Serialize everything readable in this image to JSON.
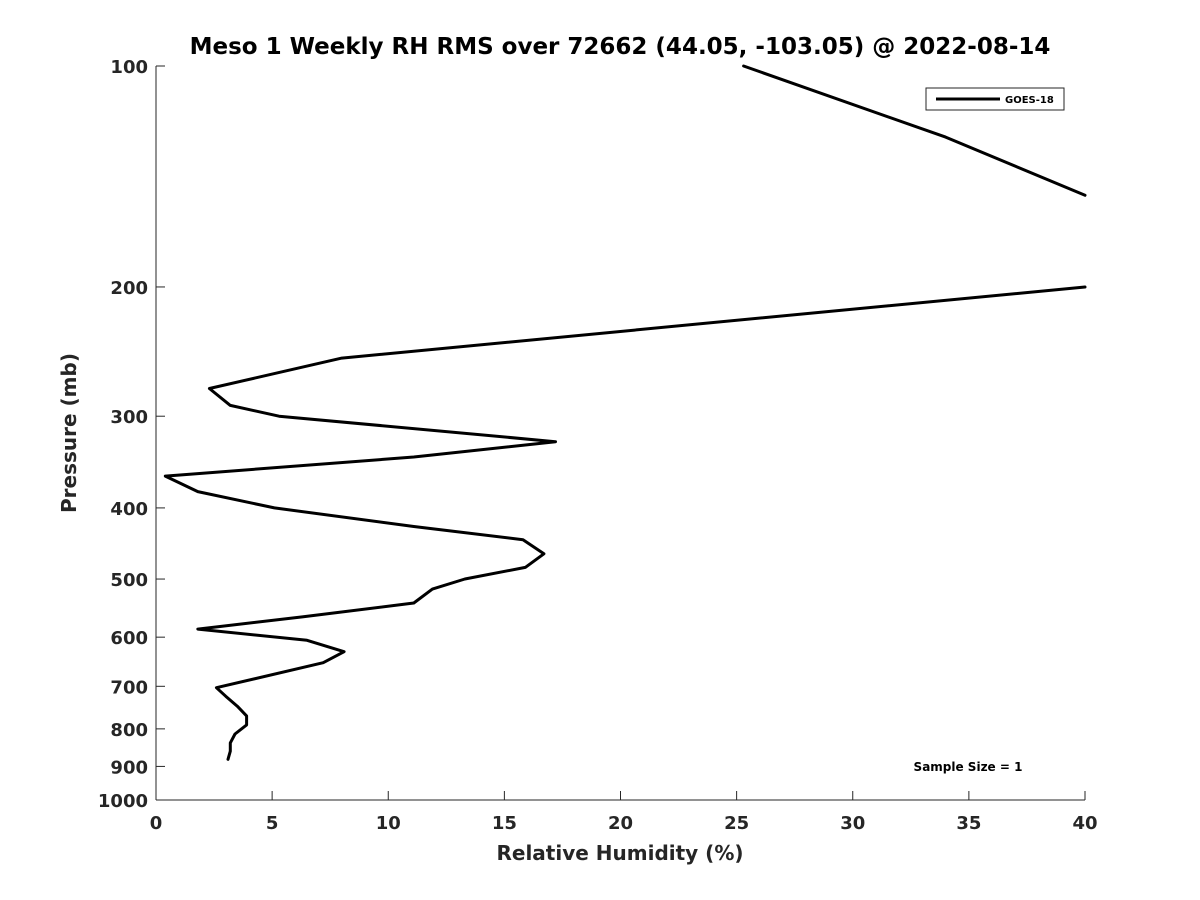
{
  "chart_data": {
    "type": "line",
    "title": "Meso 1 Weekly RH RMS over 72662 (44.05, -103.05) @ 2022-08-14",
    "xlabel": "Relative Humidity (%)",
    "ylabel": "Pressure (mb)",
    "xlim": [
      0,
      40
    ],
    "ylim": [
      100,
      1000
    ],
    "y_scale": "log",
    "y_reversed": true,
    "grid": false,
    "legend_position": "top-right",
    "x_ticks": [
      "0",
      "5",
      "10",
      "15",
      "20",
      "25",
      "30",
      "35",
      "40"
    ],
    "y_ticks": [
      "100",
      "200",
      "300",
      "400",
      "500",
      "600",
      "700",
      "800",
      "900",
      "1000"
    ],
    "series": [
      {
        "name": "GOES-18",
        "color": "#000000",
        "points": [
          {
            "x": 25.3,
            "p": 100
          },
          {
            "x": 34.0,
            "p": 125
          },
          {
            "x": 40.0,
            "p": 150
          },
          {
            "x": null,
            "p": 175
          },
          {
            "x": 40.0,
            "p": 200
          },
          {
            "x": 8.0,
            "p": 250
          },
          {
            "x": 2.3,
            "p": 275
          },
          {
            "x": 3.2,
            "p": 290
          },
          {
            "x": 5.3,
            "p": 300
          },
          {
            "x": 17.2,
            "p": 325
          },
          {
            "x": 11.1,
            "p": 341
          },
          {
            "x": 0.4,
            "p": 362
          },
          {
            "x": 1.8,
            "p": 380
          },
          {
            "x": 5.1,
            "p": 400
          },
          {
            "x": 11.1,
            "p": 424
          },
          {
            "x": 15.8,
            "p": 442
          },
          {
            "x": 16.7,
            "p": 462
          },
          {
            "x": 15.9,
            "p": 482
          },
          {
            "x": 13.3,
            "p": 500
          },
          {
            "x": 11.9,
            "p": 516
          },
          {
            "x": 11.1,
            "p": 539
          },
          {
            "x": 6.3,
            "p": 563
          },
          {
            "x": 1.8,
            "p": 585
          },
          {
            "x": 6.5,
            "p": 606
          },
          {
            "x": 8.1,
            "p": 628
          },
          {
            "x": 7.2,
            "p": 650
          },
          {
            "x": 2.6,
            "p": 703
          },
          {
            "x": 3.0,
            "p": 722
          },
          {
            "x": 3.5,
            "p": 745
          },
          {
            "x": 3.9,
            "p": 768
          },
          {
            "x": 3.9,
            "p": 790
          },
          {
            "x": 3.4,
            "p": 813
          },
          {
            "x": 3.2,
            "p": 836
          },
          {
            "x": 3.2,
            "p": 858
          },
          {
            "x": 3.1,
            "p": 880
          }
        ]
      }
    ],
    "annotation": "Sample Size = 1"
  }
}
